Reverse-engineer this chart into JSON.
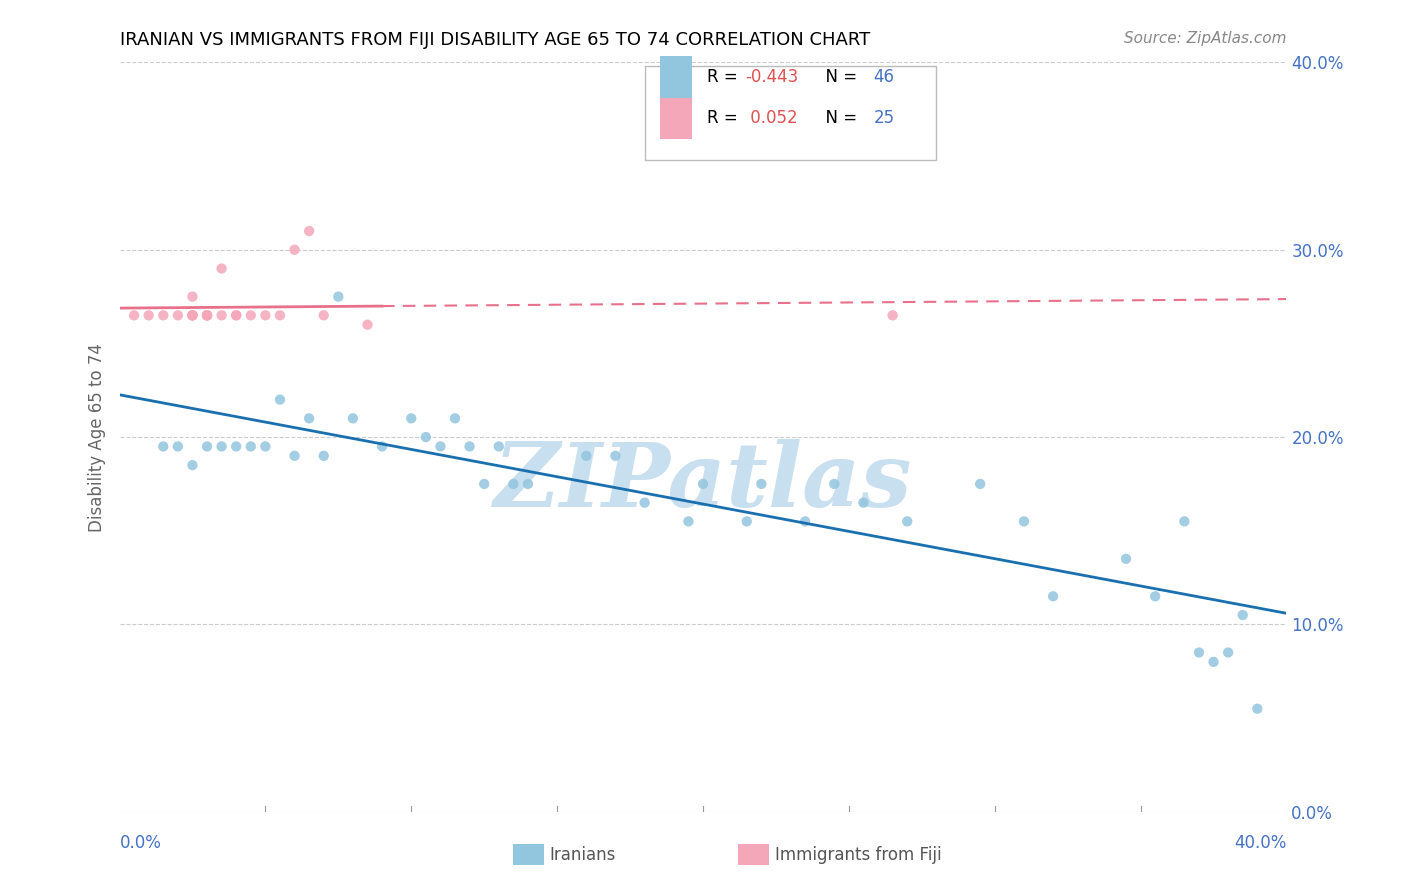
{
  "title": "IRANIAN VS IMMIGRANTS FROM FIJI DISABILITY AGE 65 TO 74 CORRELATION CHART",
  "source": "Source: ZipAtlas.com",
  "ylabel": "Disability Age 65 to 74",
  "xlim": [
    0.0,
    0.4
  ],
  "ylim": [
    0.0,
    0.4
  ],
  "ytick_values": [
    0.0,
    0.1,
    0.2,
    0.3,
    0.4
  ],
  "blue_dot_color": "#92c5de",
  "pink_dot_color": "#f4a7b9",
  "blue_line_color": "#1a6faf",
  "pink_line_solid_color": "#e8708a",
  "pink_line_dash_color": "#e8708a",
  "iranians_x": [
    0.015,
    0.02,
    0.025,
    0.03,
    0.035,
    0.04,
    0.045,
    0.05,
    0.055,
    0.06,
    0.065,
    0.07,
    0.075,
    0.08,
    0.09,
    0.1,
    0.105,
    0.11,
    0.115,
    0.12,
    0.125,
    0.13,
    0.135,
    0.14,
    0.16,
    0.17,
    0.18,
    0.195,
    0.2,
    0.215,
    0.22,
    0.235,
    0.245,
    0.255,
    0.27,
    0.295,
    0.31,
    0.32,
    0.345,
    0.355,
    0.365,
    0.37,
    0.375,
    0.38,
    0.385,
    0.39
  ],
  "iranians_y": [
    0.195,
    0.195,
    0.185,
    0.195,
    0.195,
    0.195,
    0.195,
    0.195,
    0.22,
    0.19,
    0.21,
    0.19,
    0.275,
    0.21,
    0.195,
    0.21,
    0.2,
    0.195,
    0.21,
    0.195,
    0.175,
    0.195,
    0.175,
    0.175,
    0.19,
    0.19,
    0.165,
    0.155,
    0.175,
    0.155,
    0.175,
    0.155,
    0.175,
    0.165,
    0.155,
    0.175,
    0.155,
    0.115,
    0.135,
    0.115,
    0.155,
    0.085,
    0.08,
    0.085,
    0.105,
    0.055
  ],
  "fiji_x": [
    0.005,
    0.01,
    0.015,
    0.02,
    0.025,
    0.025,
    0.025,
    0.025,
    0.025,
    0.03,
    0.03,
    0.03,
    0.03,
    0.035,
    0.035,
    0.04,
    0.04,
    0.045,
    0.05,
    0.055,
    0.06,
    0.065,
    0.07,
    0.085,
    0.265
  ],
  "fiji_y": [
    0.265,
    0.265,
    0.265,
    0.265,
    0.265,
    0.275,
    0.265,
    0.265,
    0.265,
    0.265,
    0.265,
    0.265,
    0.265,
    0.29,
    0.265,
    0.265,
    0.265,
    0.265,
    0.265,
    0.265,
    0.3,
    0.31,
    0.265,
    0.26,
    0.265
  ],
  "watermark_text": "ZIPatlas",
  "watermark_color": "#c8dff0",
  "legend_r1_label": "R = ",
  "legend_r1_val": "-0.443",
  "legend_n1_label": "N = ",
  "legend_n1_val": "46",
  "legend_r2_label": "R =  ",
  "legend_r2_val": "0.052",
  "legend_n2_label": "N = ",
  "legend_n2_val": "25",
  "grid_color": "#cccccc",
  "axis_label_color": "#4472c4",
  "r_val_color": "#e05050",
  "n_val_color": "#4472c4"
}
